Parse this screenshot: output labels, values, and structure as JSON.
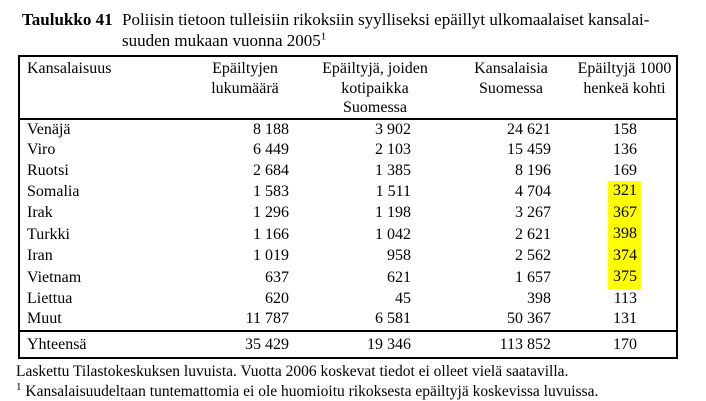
{
  "title": {
    "label": "Taulukko 41",
    "text": "Poliisin tietoon tulleisiin rikoksiin syylliseksi epäillyt ulkomaalaiset kansalai-\nsuuden mukaan vuonna 2005",
    "footnote_marker": "1"
  },
  "table": {
    "columns": [
      {
        "label": "Kansalaisuus"
      },
      {
        "label": "Epäiltyjen\nlukumäärä"
      },
      {
        "label": "Epäiltyjä, joiden\nkotipaikka\nSuomessa"
      },
      {
        "label": "Kansalaisia\nSuomessa"
      },
      {
        "label": "Epäiltyjä 1000\nhenkeä kohti"
      }
    ],
    "rows": [
      {
        "name": "Venäjä",
        "values": [
          "8 188",
          "3 902",
          "24 621",
          "158"
        ],
        "highlight": false
      },
      {
        "name": "Viro",
        "values": [
          "6 449",
          "2 103",
          "15 459",
          "136"
        ],
        "highlight": false
      },
      {
        "name": "Ruotsi",
        "values": [
          "2 684",
          "1 385",
          "8 196",
          "169"
        ],
        "highlight": false
      },
      {
        "name": "Somalia",
        "values": [
          "1 583",
          "1 511",
          "4 704",
          "321"
        ],
        "highlight": true
      },
      {
        "name": "Irak",
        "values": [
          "1 296",
          "1 198",
          "3 267",
          "367"
        ],
        "highlight": true
      },
      {
        "name": "Turkki",
        "values": [
          "1 166",
          "1 042",
          "2 621",
          "398"
        ],
        "highlight": true
      },
      {
        "name": "Iran",
        "values": [
          "1 019",
          "958",
          "2 562",
          "374"
        ],
        "highlight": true
      },
      {
        "name": "Vietnam",
        "values": [
          "637",
          "621",
          "1 657",
          "375"
        ],
        "highlight": true
      },
      {
        "name": "Liettua",
        "values": [
          "620",
          "45",
          "398",
          "113"
        ],
        "highlight": false
      },
      {
        "name": "Muut",
        "values": [
          "11 787",
          "6 581",
          "50 367",
          "131"
        ],
        "highlight": false
      }
    ],
    "total_row": {
      "name": "Yhteensä",
      "values": [
        "35 429",
        "19 346",
        "113 852",
        "170"
      ]
    }
  },
  "footer": {
    "note": "Laskettu Tilastokeskuksen luvuista. Vuotta 2006 koskevat tiedot ei olleet vielä saatavilla.",
    "footnote_marker": "1",
    "footnote": "Kansalaisuudeltaan tuntemattomia ei ole huomioitu rikoksesta epäiltyjä koskevissa luvuissa."
  },
  "colors": {
    "highlight": "#ffff00",
    "text": "#000000",
    "background": "#ffffff",
    "border": "#000000"
  }
}
